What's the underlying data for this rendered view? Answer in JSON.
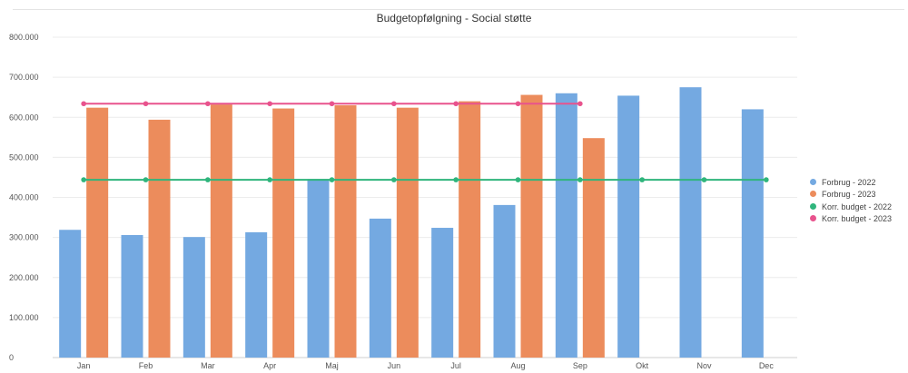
{
  "chart_data": {
    "type": "bar",
    "title": "Budgetopfølgning - Social støtte",
    "categories": [
      "Jan",
      "Feb",
      "Mar",
      "Apr",
      "Maj",
      "Jun",
      "Jul",
      "Aug",
      "Sep",
      "Okt",
      "Nov",
      "Dec"
    ],
    "series": [
      {
        "name": "Forbrug - 2022",
        "type": "bar",
        "color": "#74a9e1",
        "values": [
          319000,
          306000,
          301000,
          313000,
          446000,
          347000,
          324000,
          381000,
          660000,
          654000,
          675000,
          620000
        ]
      },
      {
        "name": "Forbrug - 2023",
        "type": "bar",
        "color": "#ec8c5c",
        "values": [
          624000,
          594000,
          632000,
          622000,
          630000,
          624000,
          640000,
          656000,
          548000,
          null,
          null,
          null
        ]
      },
      {
        "name": "Korr. budget - 2022",
        "type": "line",
        "color": "#2fb57c",
        "values": [
          444000,
          444000,
          444000,
          444000,
          444000,
          444000,
          444000,
          444000,
          444000,
          444000,
          444000,
          444000
        ]
      },
      {
        "name": "Korr. budget - 2023",
        "type": "line",
        "color": "#e8538d",
        "values": [
          634000,
          634000,
          634000,
          634000,
          634000,
          634000,
          634000,
          634000,
          634000,
          null,
          null,
          null
        ]
      }
    ],
    "yticks": [
      0,
      100000,
      200000,
      300000,
      400000,
      500000,
      600000,
      700000,
      800000
    ],
    "ytick_labels": [
      "0",
      "100.000",
      "200.000",
      "300.000",
      "400.000",
      "500.000",
      "600.000",
      "700.000",
      "800.000"
    ],
    "ylim": [
      0,
      800000
    ],
    "grid": true,
    "legend_position": "right"
  }
}
